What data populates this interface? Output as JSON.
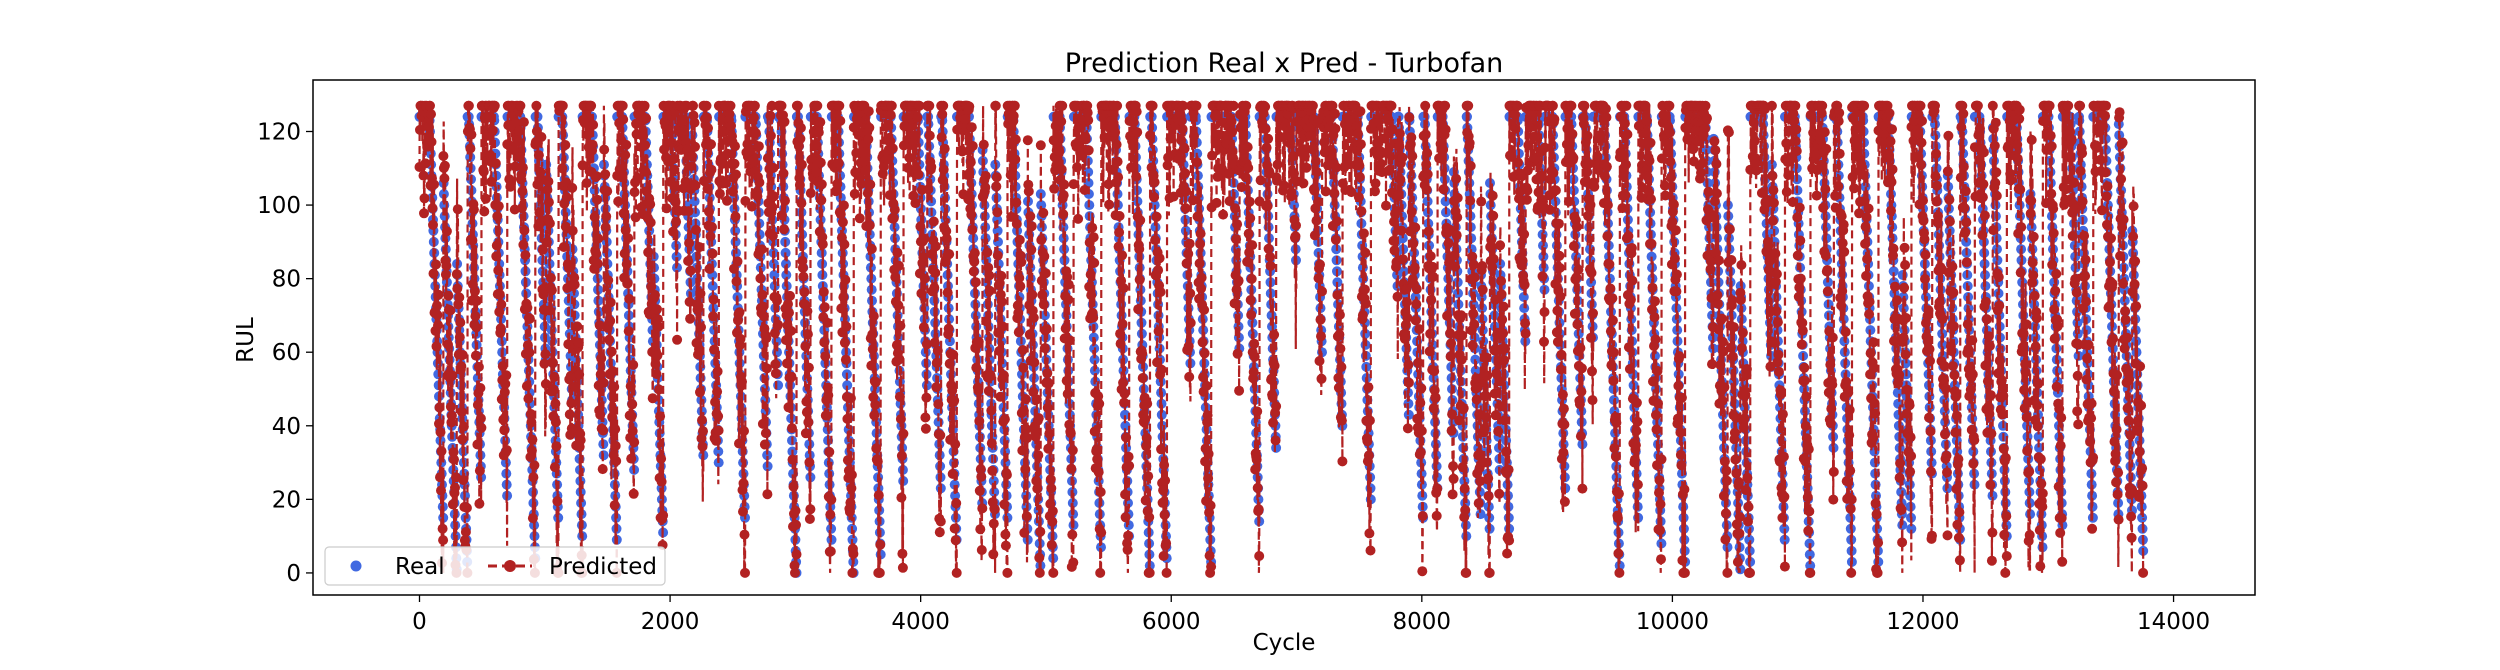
{
  "chart_data": {
    "type": "line",
    "title": "Prediction Real x Pred - Turbofan",
    "xlabel": "Cycle",
    "ylabel": "RUL",
    "xlim": [
      -850,
      14650
    ],
    "ylim": [
      -6,
      134
    ],
    "xticks": [
      0,
      2000,
      4000,
      6000,
      8000,
      10000,
      12000,
      14000
    ],
    "yticks": [
      0,
      20,
      40,
      60,
      80,
      100,
      120
    ],
    "grid": false,
    "legend": {
      "placement": "lower-left",
      "ncol": 2
    },
    "series": [
      {
        "name": "Real",
        "color": "#4169e1",
        "style": "points",
        "x_start": 0,
        "x_end": 13760,
        "y_cap": 124,
        "y_min": 0
      },
      {
        "name": "Predicted",
        "color": "#b22222",
        "style": "dashed-line-markers",
        "x_start": 0,
        "x_end": 13760,
        "y_max": 127,
        "y_min": 0
      }
    ]
  }
}
